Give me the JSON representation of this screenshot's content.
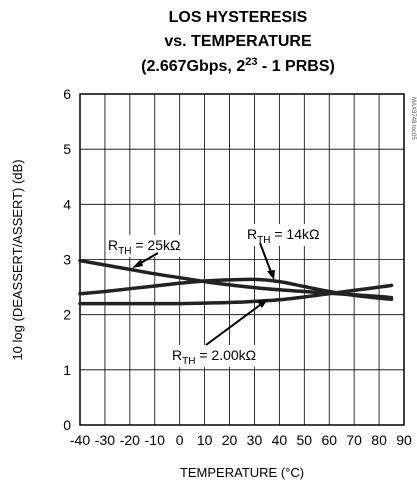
{
  "chart_data": {
    "type": "line",
    "title_lines": [
      "LOS HYSTERESIS",
      "vs. TEMPERATURE"
    ],
    "title_line3": {
      "prefix": "(2.667Gbps, 2",
      "sup": "23",
      "suffix": " - 1 PRBS)"
    },
    "xlabel": "TEMPERATURE (°C)",
    "ylabel": "10 log (DEASSERT/ASSERT) (dB)",
    "xlim": [
      -40,
      90
    ],
    "ylim": [
      0,
      6
    ],
    "xticks": [
      -40,
      -30,
      -20,
      -10,
      0,
      10,
      20,
      30,
      40,
      50,
      60,
      70,
      80,
      90
    ],
    "yticks": [
      0,
      1,
      2,
      3,
      4,
      5,
      6
    ],
    "watermark": "MAX3748 toc05",
    "grid": true,
    "series": [
      {
        "name": "RTH = 25kΩ",
        "label_main": "R",
        "label_sub": "TH",
        "label_rest": " = 25kΩ",
        "x": [
          -40,
          -30,
          -20,
          -10,
          0,
          10,
          20,
          30,
          40,
          50,
          60,
          70,
          80,
          85
        ],
        "y": [
          2.98,
          2.9,
          2.82,
          2.74,
          2.67,
          2.6,
          2.54,
          2.49,
          2.45,
          2.42,
          2.39,
          2.36,
          2.33,
          2.31
        ]
      },
      {
        "name": "RTH = 14kΩ",
        "label_main": "R",
        "label_sub": "TH",
        "label_rest": " = 14kΩ",
        "x": [
          -40,
          -30,
          -20,
          -10,
          0,
          10,
          20,
          30,
          40,
          50,
          60,
          70,
          80,
          85
        ],
        "y": [
          2.38,
          2.42,
          2.47,
          2.52,
          2.57,
          2.61,
          2.63,
          2.64,
          2.6,
          2.51,
          2.42,
          2.35,
          2.3,
          2.28
        ]
      },
      {
        "name": "RTH = 2.00kΩ",
        "label_main": "R",
        "label_sub": "TH",
        "label_rest": " = 2.00kΩ",
        "x": [
          -40,
          -30,
          -20,
          -10,
          0,
          10,
          20,
          30,
          40,
          50,
          60,
          70,
          80,
          85
        ],
        "y": [
          2.2,
          2.2,
          2.2,
          2.2,
          2.2,
          2.21,
          2.22,
          2.24,
          2.27,
          2.32,
          2.38,
          2.44,
          2.5,
          2.53
        ]
      }
    ]
  }
}
